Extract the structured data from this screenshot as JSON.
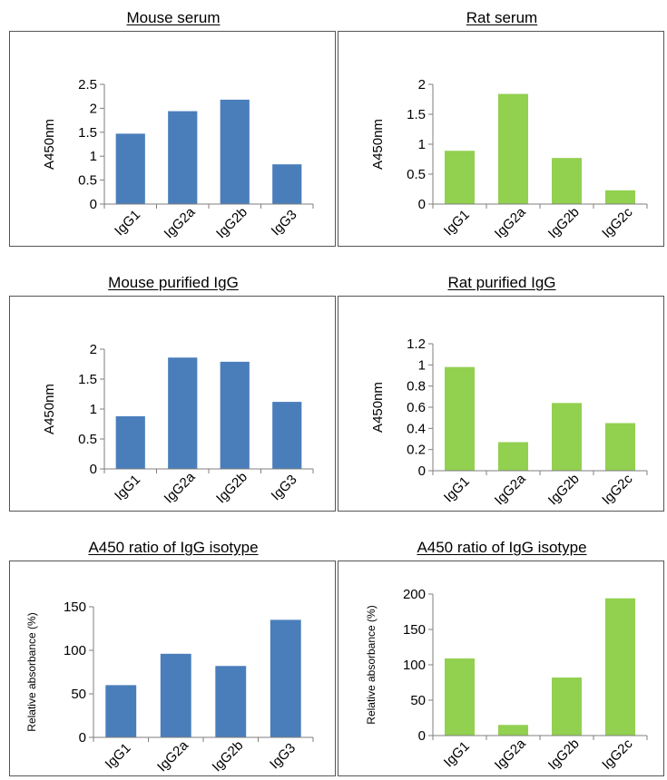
{
  "chart_data": [
    {
      "type": "bar",
      "title": "Mouse serum",
      "xlabel": "",
      "ylabel": "A450nm",
      "categories": [
        "IgG1",
        "IgG2a",
        "IgG2b",
        "IgG3"
      ],
      "values": [
        1.47,
        1.94,
        2.18,
        0.83
      ],
      "ylim": [
        0,
        2.5
      ],
      "yticks": [
        "0",
        "0.5",
        "1",
        "1.5",
        "2",
        "2.5"
      ],
      "color": "#4a7ebb",
      "grid": false
    },
    {
      "type": "bar",
      "title": "Rat serum",
      "xlabel": "",
      "ylabel": "A450nm",
      "categories": [
        "IgG1",
        "IgG2a",
        "IgG2b",
        "IgG2c"
      ],
      "values": [
        0.89,
        1.84,
        0.77,
        0.23
      ],
      "ylim": [
        0,
        2
      ],
      "yticks": [
        "0",
        "0.5",
        "1",
        "1.5",
        "2"
      ],
      "color": "#92d050",
      "grid": false
    },
    {
      "type": "bar",
      "title": "Mouse purified IgG",
      "xlabel": "",
      "ylabel": "A450nm",
      "categories": [
        "IgG1",
        "IgG2a",
        "IgG2b",
        "IgG3"
      ],
      "values": [
        0.88,
        1.86,
        1.79,
        1.12
      ],
      "ylim": [
        0,
        2
      ],
      "yticks": [
        "0",
        "0.5",
        "1",
        "1.5",
        "2"
      ],
      "color": "#4a7ebb",
      "grid": false
    },
    {
      "type": "bar",
      "title": "Rat purified IgG",
      "xlabel": "",
      "ylabel": "A450nm",
      "categories": [
        "IgG1",
        "IgG2a",
        "IgG2b",
        "IgG2c"
      ],
      "values": [
        0.98,
        0.27,
        0.64,
        0.45
      ],
      "ylim": [
        0,
        1.2
      ],
      "yticks": [
        "0",
        "0.2",
        "0.4",
        "0.6",
        "0.8",
        "1",
        "1.2"
      ],
      "color": "#92d050",
      "grid": false
    },
    {
      "type": "bar",
      "title": "A450 ratio of IgG isotype",
      "xlabel": "",
      "ylabel": "Relative absorbance (%)",
      "categories": [
        "IgG1",
        "IgG2a",
        "IgG2b",
        "IgG3"
      ],
      "values": [
        60,
        96,
        82,
        135
      ],
      "ylim": [
        0,
        150
      ],
      "yticks": [
        "0",
        "50",
        "100",
        "150"
      ],
      "color": "#4a7ebb",
      "grid": false
    },
    {
      "type": "bar",
      "title": "A450 ratio of IgG isotype",
      "xlabel": "",
      "ylabel": "Relative absorbance (%)",
      "categories": [
        "IgG1",
        "IgG2a",
        "IgG2b",
        "IgG2c"
      ],
      "values": [
        109,
        15,
        82,
        194
      ],
      "ylim": [
        0,
        200
      ],
      "yticks": [
        "0",
        "50",
        "100",
        "150",
        "200"
      ],
      "color": "#92d050",
      "grid": false
    }
  ]
}
